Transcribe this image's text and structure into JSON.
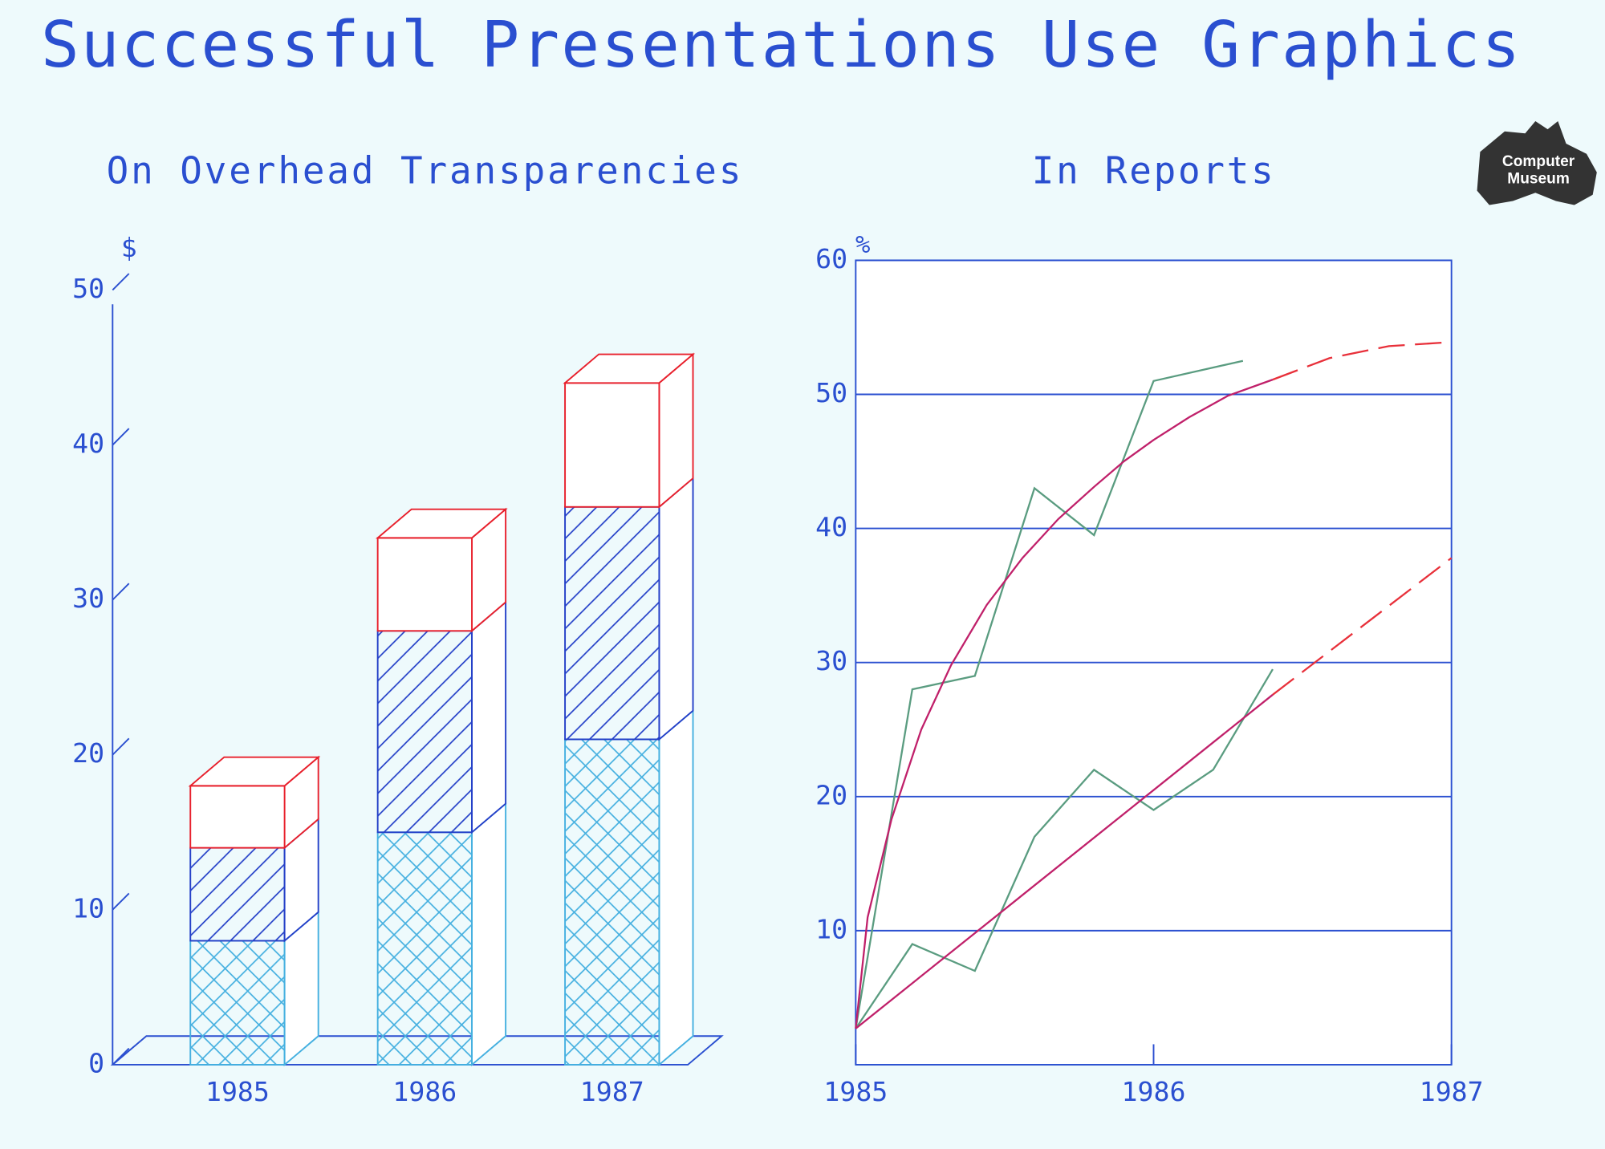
{
  "title": "Successful Presentations Use Graphics",
  "logo": [
    "Computer",
    "Museum"
  ],
  "chart_data": [
    {
      "type": "bar3d",
      "title": "On Overhead Transparencies",
      "ylabel": "$",
      "categories": [
        "1985",
        "1986",
        "1987"
      ],
      "ylim": [
        0,
        50
      ],
      "yticks": [
        0,
        10,
        20,
        30,
        40,
        50
      ],
      "series": [
        {
          "color": "#45b0e0",
          "pattern": "cross",
          "values": [
            8,
            15,
            21
          ]
        },
        {
          "color": "#2440c8",
          "pattern": "diagonal",
          "values": [
            6,
            13,
            15
          ]
        },
        {
          "color": "#e8202c",
          "pattern": "none",
          "values": [
            4,
            6,
            8
          ]
        }
      ]
    },
    {
      "type": "line",
      "title": "In Reports",
      "ylabel": "%",
      "xlim": [
        1985,
        1987
      ],
      "xticks": [
        1985,
        1986,
        1987
      ],
      "ylim": [
        0,
        60
      ],
      "yticks": [
        10,
        20,
        30,
        40,
        50,
        60
      ],
      "grid": true,
      "series": [
        {
          "color": "#5a9c80",
          "dash": false,
          "x": [
            1985,
            1985.19,
            1985.4,
            1985.6,
            1985.8,
            1986,
            1986.3
          ],
          "values": [
            2.7,
            28,
            29,
            43,
            39.5,
            51,
            52.5
          ]
        },
        {
          "color": "#5a9c80",
          "dash": false,
          "x": [
            1985,
            1985.19,
            1985.4,
            1985.6,
            1985.8,
            1986,
            1986.2,
            1986.4
          ],
          "values": [
            2.7,
            9,
            7,
            17,
            22,
            19,
            22,
            29.5
          ]
        },
        {
          "color": "#c0206a",
          "dash": false,
          "x": [
            1985,
            1985.04,
            1985.12,
            1985.22,
            1985.32,
            1985.44,
            1985.56,
            1985.68,
            1985.8,
            1985.9,
            1986,
            1986.12,
            1986.25,
            1986.4
          ],
          "values": [
            2.7,
            11,
            18.3,
            25,
            29.8,
            34.3,
            37.8,
            40.7,
            43.1,
            45,
            46.6,
            48.3,
            49.9,
            51.1
          ]
        },
        {
          "color": "#e8303a",
          "dash": true,
          "x": [
            1986.4,
            1986.59,
            1986.79,
            1987
          ],
          "values": [
            51.1,
            52.7,
            53.6,
            53.9
          ]
        },
        {
          "color": "#c0206a",
          "dash": false,
          "x": [
            1985,
            1986.4
          ],
          "values": [
            2.7,
            27.6
          ]
        },
        {
          "color": "#e8303a",
          "dash": true,
          "x": [
            1986.4,
            1987
          ],
          "values": [
            27.6,
            37.8
          ]
        }
      ]
    }
  ]
}
